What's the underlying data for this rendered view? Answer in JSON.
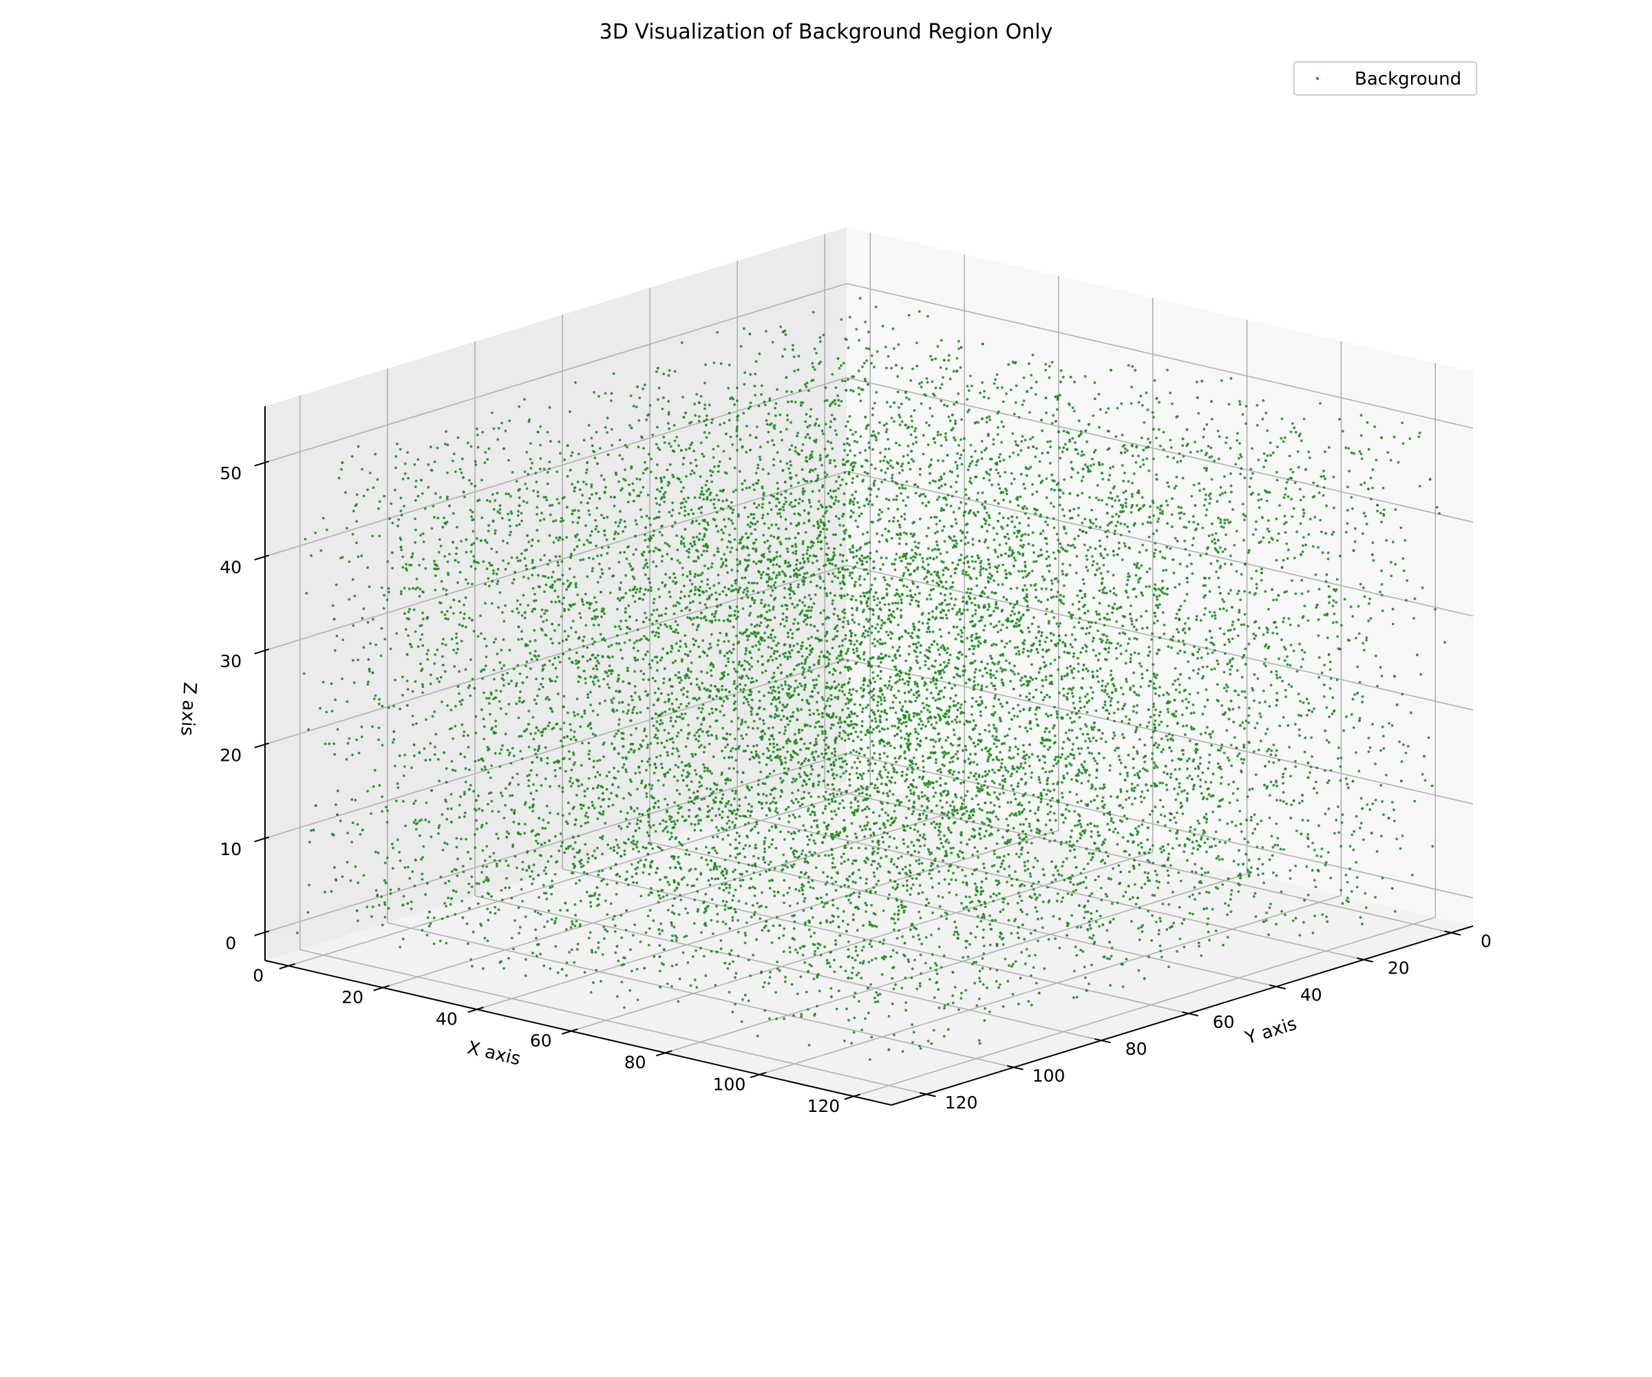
{
  "chart_data": {
    "type": "scatter",
    "dimensions": 3,
    "title": "3D Visualization of Background Region Only",
    "xlabel": "X axis",
    "ylabel": "Y axis",
    "zlabel": "Z axis",
    "xlim": [
      -5,
      128
    ],
    "ylim": [
      -5,
      128
    ],
    "zlim": [
      -3,
      56
    ],
    "x_ticks": [
      0,
      20,
      40,
      60,
      80,
      100,
      120
    ],
    "y_ticks": [
      0,
      20,
      40,
      60,
      80,
      100,
      120
    ],
    "z_ticks": [
      0,
      10,
      20,
      30,
      40,
      50
    ],
    "grid": true,
    "legend_position": "top-right",
    "series": [
      {
        "name": "Background",
        "color": "#1f8c1f",
        "marker": "dot",
        "point_count": 12000,
        "distribution": "uniform random",
        "x_range": [
          0,
          127
        ],
        "y_range": [
          0,
          127
        ],
        "z_range": [
          0,
          51
        ]
      }
    ],
    "pane_colors": {
      "floor": "#f2f2f2",
      "left_wall": "#ebebeb",
      "right_wall": "#f7f7f7",
      "grid": "#b0b0b0"
    }
  }
}
